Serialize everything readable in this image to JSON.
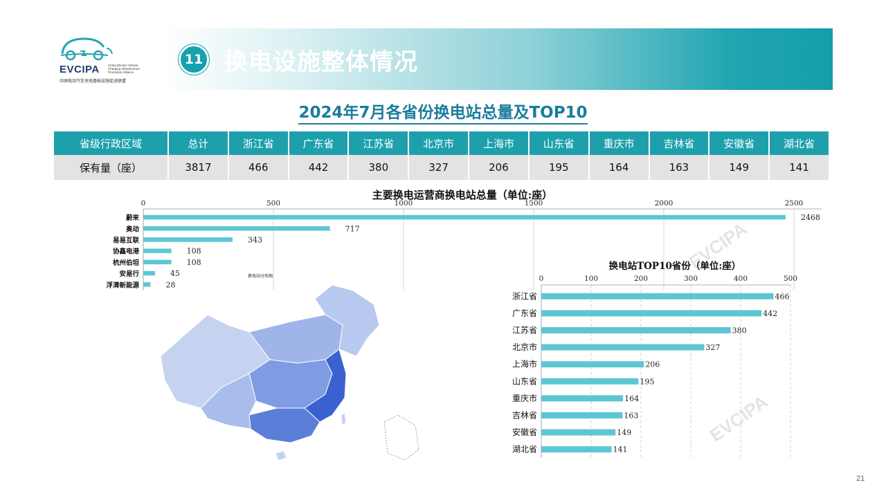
{
  "header": {
    "logo_text": "EVCIPA",
    "logo_en": "China Electric Vehicle Charging Infrastructure Promotion Alliance",
    "logo_cn": "中国电动汽车充电基础设施促进联盟",
    "section_number": "11",
    "title": "换电设施整体情况",
    "subtitle": "2024年7月各省份换电站总量及TOP10"
  },
  "province_table": {
    "row_header": "省级行政区域",
    "value_header": "保有量（座）",
    "columns": [
      "总计",
      "浙江省",
      "广东省",
      "江苏省",
      "北京市",
      "上海市",
      "山东省",
      "重庆市",
      "吉林省",
      "安徽省",
      "湖北省"
    ],
    "values": [
      "3817",
      "466",
      "442",
      "380",
      "327",
      "206",
      "195",
      "164",
      "163",
      "149",
      "141"
    ]
  },
  "map": {
    "caption": "换电站分布图",
    "base_color": "#c5d3f0",
    "mid_color": "#8aa6e6",
    "deep_color": "#2a52c9"
  },
  "page_number": "21",
  "watermark_text": "EVCIPA",
  "chart_data": [
    {
      "type": "bar",
      "orientation": "horizontal",
      "title": "主要换电运营商换电站总量（单位:座）",
      "categories": [
        "蔚来",
        "奥动",
        "易易互联",
        "协鑫电港",
        "杭州伯坦",
        "安易行",
        "浮清新能源"
      ],
      "values": [
        2468,
        717,
        343,
        108,
        108,
        45,
        28
      ],
      "xlim": [
        0,
        2500
      ],
      "xticks": [
        0,
        500,
        1000,
        1500,
        2000,
        2500
      ],
      "grid": true,
      "bar_color": "#5ec6d3"
    },
    {
      "type": "bar",
      "orientation": "horizontal",
      "title": "换电站TOP10省份（单位:座）",
      "categories": [
        "浙江省",
        "广东省",
        "江苏省",
        "北京市",
        "上海市",
        "山东省",
        "重庆市",
        "吉林省",
        "安徽省",
        "湖北省"
      ],
      "values": [
        466,
        442,
        380,
        327,
        206,
        195,
        164,
        163,
        149,
        141
      ],
      "xlim": [
        0,
        500
      ],
      "xticks": [
        0,
        100,
        200,
        300,
        400,
        500
      ],
      "grid": true,
      "bar_color": "#5ec6d3"
    }
  ]
}
